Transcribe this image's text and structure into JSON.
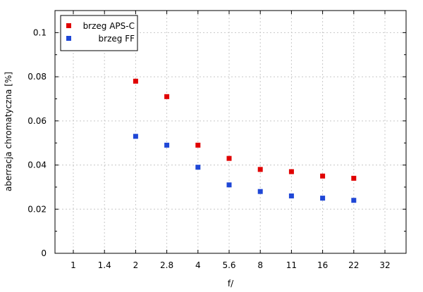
{
  "chart_data": {
    "type": "scatter",
    "title": "",
    "xlabel": "f/",
    "ylabel": "aberracja chromatyczna [%]",
    "x_categories": [
      "1",
      "1.4",
      "2",
      "2.8",
      "4",
      "5.6",
      "8",
      "11",
      "16",
      "22",
      "32"
    ],
    "ylim": [
      0,
      0.11
    ],
    "y_ticks": [
      0,
      0.02,
      0.04,
      0.06,
      0.08,
      0.1
    ],
    "y_tick_labels": [
      "0",
      "0.02",
      "0.04",
      "0.06",
      "0.08",
      "0.1"
    ],
    "grid": true,
    "legend_position": "top-left",
    "series": [
      {
        "name": "brzeg APS-C",
        "color": "#e00000",
        "x": [
          "2",
          "2.8",
          "4",
          "5.6",
          "8",
          "11",
          "16",
          "22"
        ],
        "y": [
          0.078,
          0.071,
          0.049,
          0.043,
          0.038,
          0.037,
          0.035,
          0.034
        ]
      },
      {
        "name": "brzeg FF",
        "color": "#1f47d6",
        "x": [
          "2",
          "2.8",
          "4",
          "5.6",
          "8",
          "11",
          "16",
          "22"
        ],
        "y": [
          0.053,
          0.049,
          0.039,
          0.031,
          0.028,
          0.026,
          0.025,
          0.024
        ]
      }
    ]
  }
}
